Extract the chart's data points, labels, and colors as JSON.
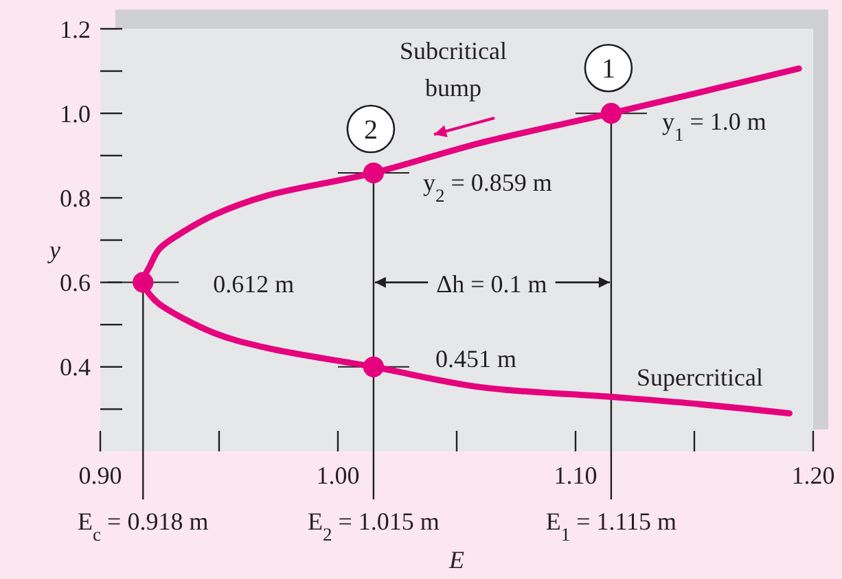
{
  "chart_data": {
    "type": "line",
    "xlabel": "E",
    "ylabel": "y",
    "xlim": [
      0.9,
      1.2
    ],
    "ylim": [
      0.2,
      1.2
    ],
    "xticks": [
      {
        "value": 0.9,
        "label": "0.90"
      },
      {
        "value": 0.95,
        "label": null
      },
      {
        "value": 1.0,
        "label": "1.00"
      },
      {
        "value": 1.05,
        "label": null
      },
      {
        "value": 1.1,
        "label": "1.10"
      },
      {
        "value": 1.15,
        "label": null
      },
      {
        "value": 1.2,
        "label": "1.20"
      }
    ],
    "yticks": [
      {
        "value": 0.3,
        "label": null
      },
      {
        "value": 0.4,
        "label": "0.4"
      },
      {
        "value": 0.5,
        "label": null
      },
      {
        "value": 0.6,
        "label": "0.6"
      },
      {
        "value": 0.7,
        "label": null
      },
      {
        "value": 0.8,
        "label": "0.8"
      },
      {
        "value": 0.9,
        "label": null
      },
      {
        "value": 1.0,
        "label": "1.0"
      },
      {
        "value": 1.1,
        "label": null
      },
      {
        "value": 1.2,
        "label": "1.2"
      }
    ],
    "grid": false,
    "series": [
      {
        "color": "#e5007d",
        "marker": "none",
        "line_style": "solid",
        "x": [
          1.194,
          1.16,
          1.115,
          1.06,
          1.015,
          0.97,
          0.948,
          0.935,
          0.925,
          0.921,
          0.918,
          0.921,
          0.925,
          0.948,
          0.97,
          1.015,
          1.06,
          1.115,
          1.15,
          1.19
        ],
        "values": [
          1.106,
          1.06,
          1.0,
          0.93,
          0.859,
          0.805,
          0.76,
          0.72,
          0.68,
          0.64,
          0.6,
          0.57,
          0.548,
          0.48,
          0.445,
          0.4,
          0.352,
          0.329,
          0.313,
          0.29
        ]
      },
      {
        "type": "scatter",
        "color": "#e5007d",
        "marker": "circle",
        "x": [
          0.918,
          1.015,
          1.015,
          1.115
        ],
        "values": [
          0.6,
          0.859,
          0.4,
          1.0
        ]
      }
    ],
    "ref_lines": [
      {
        "axis": "x",
        "value": 0.918,
        "label": "E$_{c}$ = 0.918 m",
        "color": "#231f20"
      },
      {
        "axis": "x",
        "value": 1.015,
        "label": "E$_{2}$ = 1.015 m",
        "color": "#231f20"
      },
      {
        "axis": "x",
        "value": 1.115,
        "label": "E$_{1}$ = 1.115 m",
        "color": "#231f20"
      }
    ],
    "annotations": [
      "Subcritical\nbump",
      {
        "text": "1",
        "x": 1.115,
        "y": 1.0
      },
      {
        "text": "2",
        "x": 1.015,
        "y": 0.859
      },
      {
        "text": "y$_{1}$ = 1.0 m",
        "x": 1.115,
        "y": 1.0
      },
      {
        "text": "y$_{2}$ = 0.859 m",
        "x": 1.015,
        "y": 0.859
      },
      {
        "text": "0.612 m",
        "x": 0.918,
        "y": 0.6
      },
      {
        "text": "0.451 m",
        "x": 1.015,
        "y": 0.4
      },
      {
        "text": "Δh = 0.1 m",
        "x": 1.015,
        "y": 0.6
      },
      {
        "text": "Supercritical",
        "x": 1.15,
        "y": 0.31
      }
    ]
  }
}
